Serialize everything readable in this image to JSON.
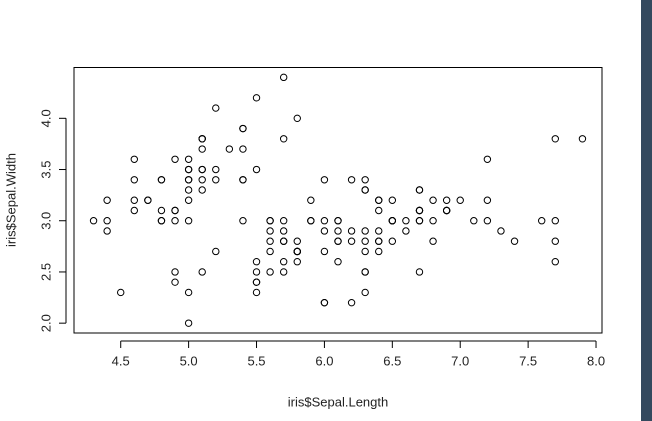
{
  "chart_data": {
    "type": "scatter",
    "x_label": "iris$Sepal.Length",
    "y_label": "iris$Sepal.Width",
    "x": [
      5.1,
      4.9,
      4.7,
      4.6,
      5.0,
      5.4,
      4.6,
      5.0,
      4.4,
      4.9,
      5.4,
      4.8,
      4.8,
      4.3,
      5.8,
      5.7,
      5.4,
      5.1,
      5.7,
      5.1,
      5.4,
      5.1,
      4.6,
      5.1,
      4.8,
      5.0,
      5.0,
      5.2,
      5.2,
      4.7,
      4.8,
      5.4,
      5.2,
      5.5,
      4.9,
      5.0,
      5.5,
      4.9,
      4.4,
      5.1,
      5.0,
      4.5,
      4.4,
      5.0,
      5.1,
      4.8,
      5.1,
      4.6,
      5.3,
      5.0,
      7.0,
      6.4,
      6.9,
      5.5,
      6.5,
      5.7,
      6.3,
      4.9,
      6.6,
      5.2,
      5.0,
      5.9,
      6.0,
      6.1,
      5.6,
      6.7,
      5.6,
      5.8,
      6.2,
      5.6,
      5.9,
      6.1,
      6.3,
      6.1,
      6.4,
      6.6,
      6.8,
      6.7,
      6.0,
      5.7,
      5.5,
      5.5,
      5.8,
      6.0,
      5.4,
      6.0,
      6.7,
      6.3,
      5.6,
      5.5,
      5.5,
      6.1,
      5.8,
      5.0,
      5.6,
      5.7,
      5.7,
      6.2,
      5.1,
      5.7,
      6.3,
      5.8,
      7.1,
      6.3,
      6.5,
      7.6,
      4.9,
      7.3,
      6.7,
      7.2,
      6.5,
      6.4,
      6.8,
      5.7,
      5.8,
      6.4,
      6.5,
      7.7,
      7.7,
      6.0,
      6.9,
      5.6,
      7.7,
      6.3,
      6.7,
      7.2,
      6.2,
      6.1,
      6.4,
      7.2,
      7.4,
      7.9,
      6.4,
      6.3,
      6.1,
      7.7,
      6.3,
      6.4,
      6.0,
      6.9,
      6.7,
      6.9,
      5.8,
      6.8,
      6.7,
      6.7,
      6.3,
      6.5,
      6.2,
      5.9
    ],
    "y": [
      3.5,
      3.0,
      3.2,
      3.1,
      3.6,
      3.9,
      3.4,
      3.4,
      2.9,
      3.1,
      3.7,
      3.4,
      3.0,
      3.0,
      4.0,
      4.4,
      3.9,
      3.5,
      3.8,
      3.8,
      3.4,
      3.7,
      3.6,
      3.3,
      3.4,
      3.0,
      3.4,
      3.5,
      3.4,
      3.2,
      3.1,
      3.4,
      4.1,
      4.2,
      3.1,
      3.2,
      3.5,
      3.6,
      3.0,
      3.4,
      3.5,
      2.3,
      3.2,
      3.5,
      3.8,
      3.0,
      3.8,
      3.2,
      3.7,
      3.3,
      3.2,
      3.2,
      3.1,
      2.3,
      2.8,
      2.8,
      3.3,
      2.4,
      2.9,
      2.7,
      2.0,
      3.0,
      2.2,
      2.9,
      2.9,
      3.1,
      3.0,
      2.7,
      2.2,
      2.5,
      3.2,
      2.8,
      2.5,
      2.8,
      2.9,
      3.0,
      2.8,
      3.0,
      2.9,
      2.6,
      2.4,
      2.4,
      2.7,
      2.7,
      3.0,
      3.4,
      3.1,
      2.3,
      3.0,
      2.5,
      2.6,
      3.0,
      2.6,
      2.3,
      2.7,
      3.0,
      2.9,
      2.9,
      2.5,
      2.8,
      3.3,
      2.7,
      3.0,
      2.9,
      3.0,
      3.0,
      2.5,
      2.9,
      2.5,
      3.6,
      3.2,
      2.7,
      3.0,
      2.5,
      2.8,
      3.2,
      3.0,
      3.8,
      2.6,
      2.2,
      3.2,
      2.8,
      2.8,
      2.7,
      3.3,
      3.2,
      2.8,
      3.0,
      2.8,
      3.0,
      2.8,
      3.8,
      2.8,
      2.8,
      2.6,
      3.0,
      3.4,
      3.1,
      3.0,
      3.1,
      3.1,
      3.1,
      2.7,
      3.2,
      3.3,
      3.0,
      2.5,
      3.0,
      3.4,
      3.0
    ],
    "xlim": [
      4.156,
      8.044
    ],
    "ylim": [
      1.904,
      4.496
    ],
    "xticks": [
      4.5,
      {
        "value": 5,
        "label": "5.0"
      },
      5.5,
      {
        "value": 6,
        "label": "6.0"
      },
      6.5,
      {
        "value": 7,
        "label": "7.0"
      },
      7.5,
      {
        "value": 8,
        "label": "8.0"
      }
    ],
    "yticks": [
      {
        "value": 2,
        "label": "2.0"
      },
      2.5,
      {
        "value": 3,
        "label": "3.0"
      },
      3.5,
      {
        "value": 4,
        "label": "4.0"
      }
    ],
    "marker_color": "#000000"
  }
}
